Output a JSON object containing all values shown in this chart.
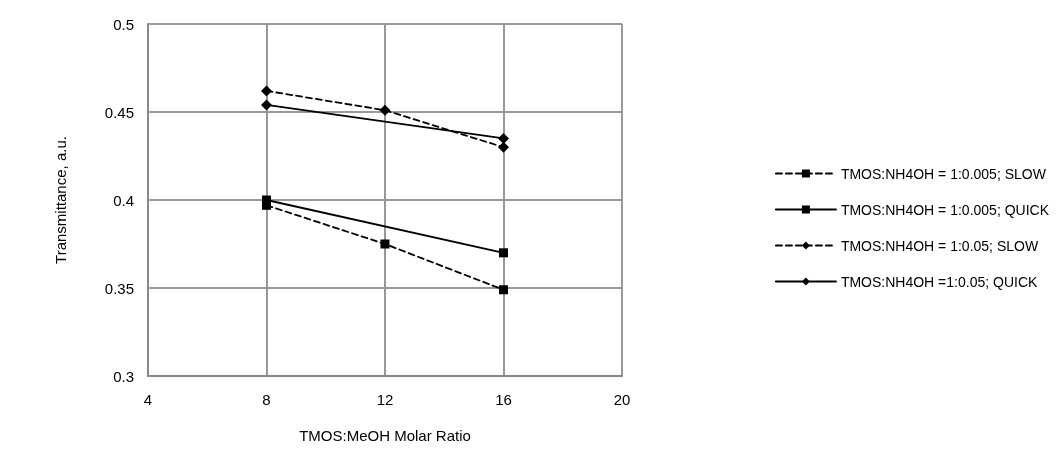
{
  "chart_data": {
    "type": "line",
    "xlabel": "TMOS:MeOH Molar Ratio",
    "ylabel": "Transmittance, a.u.",
    "xlim": [
      4,
      20
    ],
    "xticks": [
      4,
      8,
      12,
      16,
      20
    ],
    "ylim": [
      0.3,
      0.5
    ],
    "yticks": [
      0.3,
      0.35,
      0.4,
      0.45,
      0.5
    ],
    "grid": true,
    "legend": "right",
    "series": [
      {
        "name": "TMOS:NH4OH = 1:0.005; SLOW",
        "color": "#000000",
        "x": [
          8,
          12,
          16
        ],
        "values": [
          0.397,
          0.375,
          0.349
        ],
        "marker": "square",
        "line_style": "dashed"
      },
      {
        "name": "TMOS:NH4OH = 1:0.005; QUICK",
        "color": "#000000",
        "x": [
          8,
          16
        ],
        "values": [
          0.4,
          0.37
        ],
        "marker": "square",
        "line_style": "solid"
      },
      {
        "name": "TMOS:NH4OH = 1:0.05; SLOW",
        "color": "#000000",
        "x": [
          8,
          12,
          16
        ],
        "values": [
          0.462,
          0.451,
          0.43
        ],
        "marker": "diamond",
        "line_style": "dashed"
      },
      {
        "name": "TMOS:NH4OH =1:0.05; QUICK",
        "color": "#000000",
        "x": [
          8,
          16
        ],
        "values": [
          0.454,
          0.435
        ],
        "marker": "diamond",
        "line_style": "solid"
      }
    ]
  }
}
